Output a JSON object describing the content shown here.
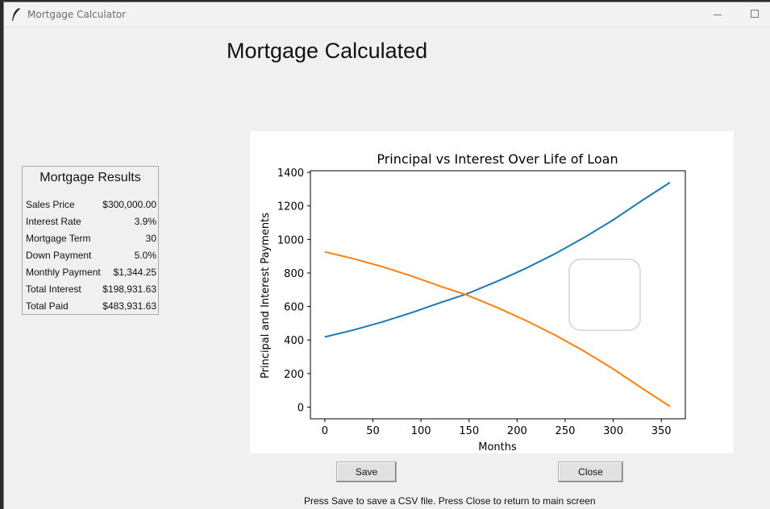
{
  "window": {
    "title": "Mortgage Calculator"
  },
  "page_title": "Mortgage Calculated",
  "results": {
    "title": "Mortgage Results",
    "rows": [
      {
        "label": "Sales Price",
        "value": "$300,000.00"
      },
      {
        "label": "Interest Rate",
        "value": "3.9%"
      },
      {
        "label": "Mortgage Term",
        "value": "30"
      },
      {
        "label": "Down Payment",
        "value": "5.0%"
      },
      {
        "label": "Monthly Payment",
        "value": "$1,344.25"
      },
      {
        "label": "Total Interest",
        "value": "$198,931.63"
      },
      {
        "label": "Total Paid",
        "value": "$483,931.63"
      }
    ]
  },
  "chart_data": {
    "type": "line",
    "title": "Principal vs Interest Over Life of Loan",
    "xlabel": "Months",
    "ylabel": "Principal and Interest Payments",
    "xlim": [
      -15,
      375
    ],
    "ylim": [
      -70,
      1410
    ],
    "xticks": [
      0,
      50,
      100,
      150,
      200,
      250,
      300,
      350
    ],
    "yticks": [
      0,
      200,
      400,
      600,
      800,
      1000,
      1200,
      1400
    ],
    "grid": false,
    "series": [
      {
        "color": "#1f77b4",
        "x": [
          0,
          30,
          60,
          90,
          120,
          148,
          180,
          210,
          240,
          270,
          300,
          330,
          359
        ],
        "y": [
          418,
          460,
          508,
          563,
          623,
          676,
          752,
          830,
          916,
          1012,
          1117,
          1232,
          1340
        ]
      },
      {
        "color": "#ff7f0e",
        "x": [
          0,
          30,
          60,
          90,
          120,
          148,
          180,
          210,
          240,
          270,
          300,
          330,
          359
        ],
        "y": [
          926,
          885,
          837,
          782,
          721,
          668,
          592,
          514,
          428,
          332,
          227,
          112,
          4
        ]
      }
    ]
  },
  "buttons": {
    "save": "Save",
    "close": "Close"
  },
  "hint": "Press Save to save a CSV file.  Press Close to return to main screen"
}
